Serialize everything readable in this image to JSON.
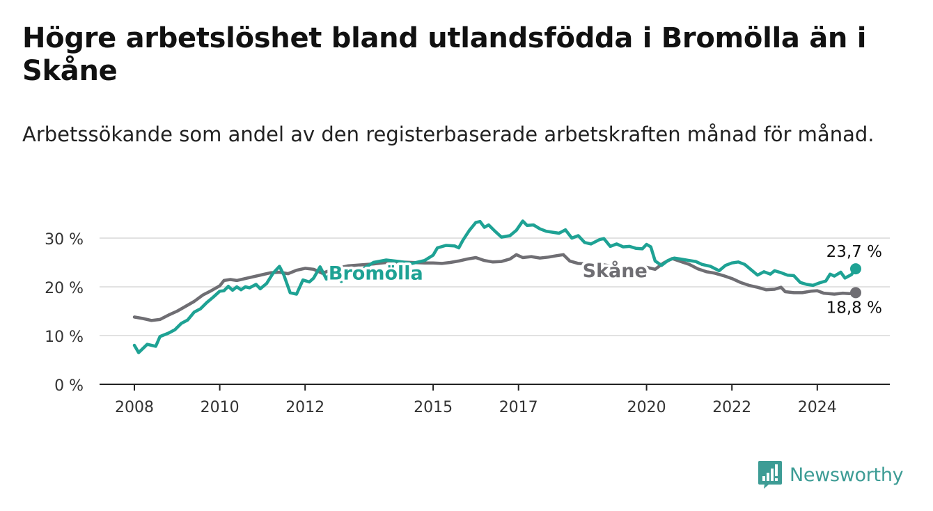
{
  "title": "Högre arbetslöshet bland utlandsfödda i Bromölla än i Skåne",
  "subtitle": "Arbetssökande som andel av den registerbaserade arbetskraften månad för månad.",
  "brand": {
    "name": "Newsworthy"
  },
  "colors": {
    "bromolla": "#1ea294",
    "skane": "#6f6e73",
    "grid": "#d9d9d9",
    "axis": "#222222"
  },
  "chart_data": {
    "type": "line",
    "x_ticks": [
      "2008",
      "2010",
      "2012",
      "2015",
      "2017",
      "2020",
      "2022",
      "2024"
    ],
    "y_ticks": [
      "0 %",
      "10 %",
      "20 %",
      "30 %"
    ],
    "ylim": [
      0,
      35
    ],
    "grid": true,
    "series": [
      {
        "name": "Bromölla",
        "color": "#1ea294",
        "end_label": "23,7 %",
        "points": [
          [
            2008.0,
            8.0
          ],
          [
            2008.1,
            6.5
          ],
          [
            2008.3,
            8.2
          ],
          [
            2008.5,
            7.8
          ],
          [
            2008.6,
            9.8
          ],
          [
            2008.8,
            10.5
          ],
          [
            2008.95,
            11.2
          ],
          [
            2009.1,
            12.5
          ],
          [
            2009.25,
            13.2
          ],
          [
            2009.4,
            14.8
          ],
          [
            2009.55,
            15.5
          ],
          [
            2009.7,
            16.8
          ],
          [
            2009.85,
            17.9
          ],
          [
            2010.0,
            19.1
          ],
          [
            2010.1,
            19.2
          ],
          [
            2010.2,
            20.1
          ],
          [
            2010.3,
            19.3
          ],
          [
            2010.4,
            20.0
          ],
          [
            2010.5,
            19.4
          ],
          [
            2010.6,
            20.0
          ],
          [
            2010.7,
            19.8
          ],
          [
            2010.85,
            20.5
          ],
          [
            2010.95,
            19.6
          ],
          [
            2011.1,
            20.7
          ],
          [
            2011.25,
            22.8
          ],
          [
            2011.4,
            24.2
          ],
          [
            2011.5,
            22.5
          ],
          [
            2011.65,
            18.8
          ],
          [
            2011.8,
            18.5
          ],
          [
            2011.95,
            21.4
          ],
          [
            2012.1,
            21.0
          ],
          [
            2012.2,
            21.8
          ],
          [
            2012.35,
            24.1
          ],
          [
            2012.5,
            21.6
          ],
          [
            2012.6,
            22.9
          ],
          [
            2012.75,
            22.0
          ],
          [
            2012.85,
            21.1
          ],
          [
            2013.0,
            23.5
          ],
          [
            2013.3,
            23.4
          ],
          [
            2013.6,
            25.0
          ],
          [
            2013.9,
            25.5
          ],
          [
            2014.2,
            25.2
          ],
          [
            2014.5,
            24.8
          ],
          [
            2014.8,
            25.4
          ],
          [
            2015.0,
            26.5
          ],
          [
            2015.1,
            28.0
          ],
          [
            2015.3,
            28.5
          ],
          [
            2015.5,
            28.4
          ],
          [
            2015.6,
            28.0
          ],
          [
            2015.7,
            29.6
          ],
          [
            2015.85,
            31.6
          ],
          [
            2016.0,
            33.2
          ],
          [
            2016.1,
            33.4
          ],
          [
            2016.2,
            32.2
          ],
          [
            2016.3,
            32.7
          ],
          [
            2016.45,
            31.4
          ],
          [
            2016.6,
            30.2
          ],
          [
            2016.8,
            30.5
          ],
          [
            2016.95,
            31.6
          ],
          [
            2017.1,
            33.5
          ],
          [
            2017.2,
            32.6
          ],
          [
            2017.35,
            32.7
          ],
          [
            2017.5,
            31.9
          ],
          [
            2017.65,
            31.4
          ],
          [
            2017.8,
            31.2
          ],
          [
            2017.95,
            31.0
          ],
          [
            2018.1,
            31.7
          ],
          [
            2018.25,
            30.0
          ],
          [
            2018.4,
            30.5
          ],
          [
            2018.55,
            29.1
          ],
          [
            2018.7,
            28.8
          ],
          [
            2018.9,
            29.7
          ],
          [
            2019.0,
            29.9
          ],
          [
            2019.15,
            28.3
          ],
          [
            2019.3,
            28.8
          ],
          [
            2019.45,
            28.2
          ],
          [
            2019.6,
            28.3
          ],
          [
            2019.75,
            27.9
          ],
          [
            2019.9,
            27.8
          ],
          [
            2020.0,
            28.7
          ],
          [
            2020.1,
            28.2
          ],
          [
            2020.2,
            25.3
          ],
          [
            2020.35,
            24.4
          ],
          [
            2020.5,
            25.4
          ],
          [
            2020.65,
            25.9
          ],
          [
            2020.8,
            25.7
          ],
          [
            2021.0,
            25.4
          ],
          [
            2021.15,
            25.2
          ],
          [
            2021.3,
            24.6
          ],
          [
            2021.5,
            24.2
          ],
          [
            2021.7,
            23.3
          ],
          [
            2021.85,
            24.4
          ],
          [
            2022.0,
            24.9
          ],
          [
            2022.15,
            25.1
          ],
          [
            2022.3,
            24.6
          ],
          [
            2022.45,
            23.5
          ],
          [
            2022.6,
            22.4
          ],
          [
            2022.75,
            23.1
          ],
          [
            2022.9,
            22.6
          ],
          [
            2023.0,
            23.3
          ],
          [
            2023.15,
            22.9
          ],
          [
            2023.3,
            22.4
          ],
          [
            2023.45,
            22.3
          ],
          [
            2023.6,
            20.9
          ],
          [
            2023.75,
            20.5
          ],
          [
            2023.9,
            20.3
          ],
          [
            2024.05,
            20.8
          ],
          [
            2024.2,
            21.2
          ],
          [
            2024.3,
            22.6
          ],
          [
            2024.4,
            22.2
          ],
          [
            2024.55,
            23.0
          ],
          [
            2024.65,
            21.8
          ],
          [
            2024.8,
            22.5
          ],
          [
            2024.9,
            23.7
          ]
        ]
      },
      {
        "name": "Skåne",
        "color": "#6f6e73",
        "end_label": "18,8 %",
        "points": [
          [
            2008.0,
            13.8
          ],
          [
            2008.2,
            13.5
          ],
          [
            2008.4,
            13.1
          ],
          [
            2008.6,
            13.3
          ],
          [
            2008.8,
            14.2
          ],
          [
            2009.0,
            15.0
          ],
          [
            2009.2,
            16.0
          ],
          [
            2009.4,
            17.0
          ],
          [
            2009.6,
            18.3
          ],
          [
            2009.8,
            19.2
          ],
          [
            2010.0,
            20.2
          ],
          [
            2010.1,
            21.3
          ],
          [
            2010.25,
            21.5
          ],
          [
            2010.4,
            21.3
          ],
          [
            2010.6,
            21.7
          ],
          [
            2010.8,
            22.1
          ],
          [
            2011.0,
            22.5
          ],
          [
            2011.2,
            22.9
          ],
          [
            2011.4,
            23.0
          ],
          [
            2011.6,
            22.7
          ],
          [
            2011.8,
            23.4
          ],
          [
            2012.0,
            23.8
          ],
          [
            2012.2,
            23.6
          ],
          [
            2012.4,
            22.8
          ],
          [
            2012.6,
            23.4
          ],
          [
            2012.8,
            23.9
          ],
          [
            2013.0,
            24.3
          ],
          [
            2013.3,
            24.5
          ],
          [
            2013.6,
            24.7
          ],
          [
            2013.9,
            25.0
          ],
          [
            2014.2,
            25.1
          ],
          [
            2014.5,
            25.0
          ],
          [
            2014.8,
            24.9
          ],
          [
            2015.0,
            24.9
          ],
          [
            2015.2,
            24.8
          ],
          [
            2015.4,
            25.0
          ],
          [
            2015.6,
            25.3
          ],
          [
            2015.8,
            25.7
          ],
          [
            2016.0,
            26.0
          ],
          [
            2016.2,
            25.4
          ],
          [
            2016.4,
            25.1
          ],
          [
            2016.6,
            25.2
          ],
          [
            2016.8,
            25.7
          ],
          [
            2016.95,
            26.6
          ],
          [
            2017.1,
            26.0
          ],
          [
            2017.3,
            26.2
          ],
          [
            2017.5,
            25.9
          ],
          [
            2017.7,
            26.1
          ],
          [
            2017.9,
            26.4
          ],
          [
            2018.05,
            26.6
          ],
          [
            2018.2,
            25.3
          ],
          [
            2018.4,
            24.8
          ],
          [
            2018.6,
            24.7
          ],
          [
            2018.8,
            24.3
          ],
          [
            2019.0,
            24.5
          ],
          [
            2019.3,
            24.1
          ],
          [
            2019.6,
            23.6
          ],
          [
            2019.9,
            23.4
          ],
          [
            2020.0,
            24.0
          ],
          [
            2020.2,
            23.6
          ],
          [
            2020.4,
            24.9
          ],
          [
            2020.6,
            25.8
          ],
          [
            2020.8,
            25.2
          ],
          [
            2021.0,
            24.6
          ],
          [
            2021.2,
            23.7
          ],
          [
            2021.4,
            23.1
          ],
          [
            2021.6,
            22.8
          ],
          [
            2021.8,
            22.3
          ],
          [
            2022.0,
            21.7
          ],
          [
            2022.2,
            20.9
          ],
          [
            2022.4,
            20.3
          ],
          [
            2022.6,
            19.9
          ],
          [
            2022.8,
            19.4
          ],
          [
            2023.0,
            19.5
          ],
          [
            2023.15,
            19.9
          ],
          [
            2023.25,
            19.0
          ],
          [
            2023.45,
            18.8
          ],
          [
            2023.65,
            18.8
          ],
          [
            2023.85,
            19.1
          ],
          [
            2024.0,
            19.2
          ],
          [
            2024.15,
            18.7
          ],
          [
            2024.4,
            18.5
          ],
          [
            2024.6,
            18.7
          ],
          [
            2024.75,
            18.6
          ],
          [
            2024.9,
            18.8
          ]
        ]
      }
    ]
  }
}
